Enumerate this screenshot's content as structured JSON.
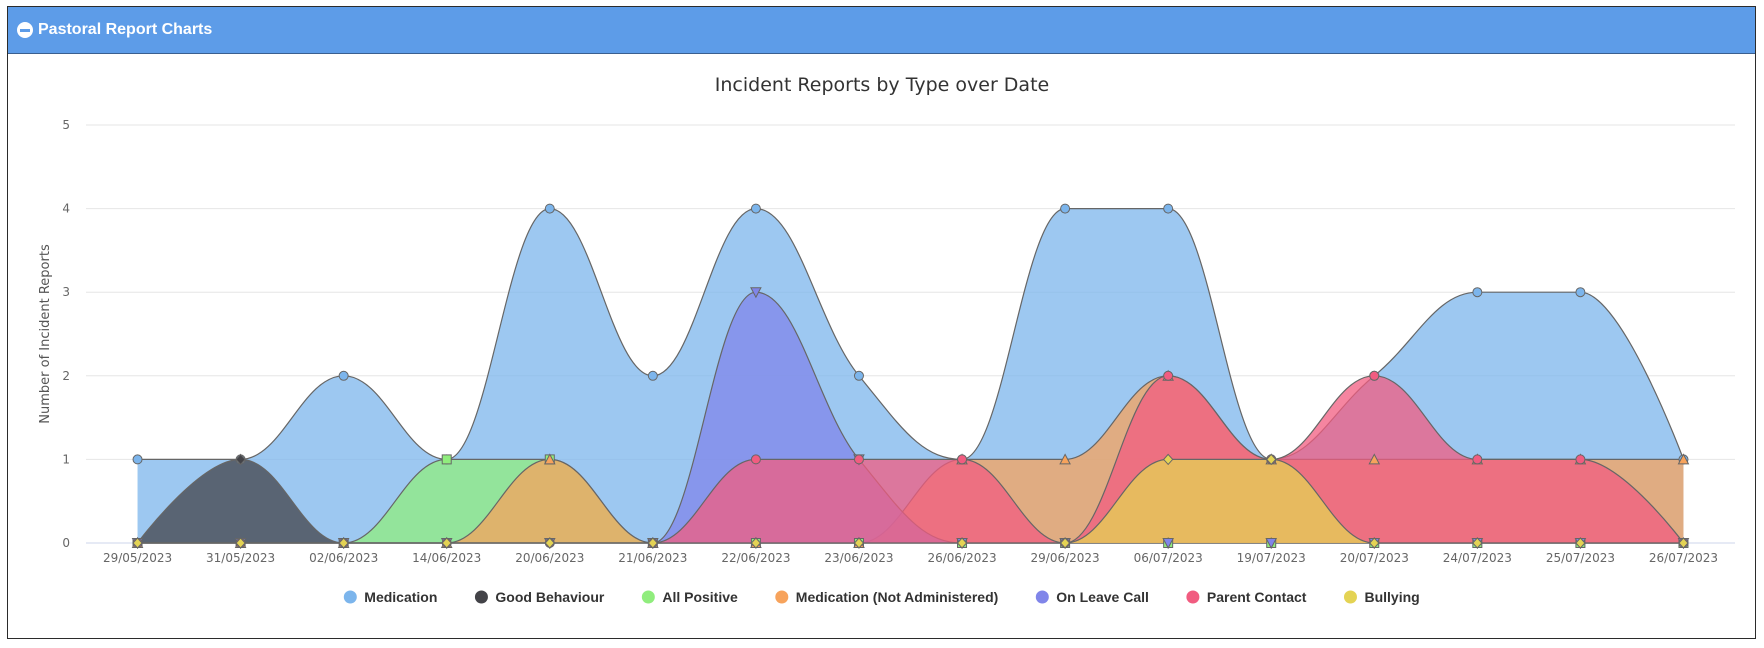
{
  "panel": {
    "title": "Pastoral Report Charts",
    "icon": "collapse-minus-icon"
  },
  "chart_data": {
    "type": "area",
    "subtype": "spline",
    "title": "Incident Reports by Type over Date",
    "xlabel": "",
    "ylabel": "Number of Incident Reports",
    "ylim": [
      0,
      5
    ],
    "yticks": [
      "0",
      "1",
      "2",
      "3",
      "4",
      "5"
    ],
    "grid": true,
    "legend": "bottom-center",
    "categories": [
      "29/05/2023",
      "31/05/2023",
      "02/06/2023",
      "14/06/2023",
      "20/06/2023",
      "21/06/2023",
      "22/06/2023",
      "23/06/2023",
      "26/06/2023",
      "29/06/2023",
      "06/07/2023",
      "19/07/2023",
      "20/07/2023",
      "24/07/2023",
      "25/07/2023",
      "26/07/2023"
    ],
    "series": [
      {
        "name": "Medication",
        "color": "#7cb5ec",
        "marker": "circle",
        "values": [
          1,
          1,
          2,
          1,
          4,
          2,
          4,
          2,
          1,
          4,
          4,
          1,
          2,
          3,
          3,
          1
        ]
      },
      {
        "name": "Good Behaviour",
        "color": "#434348",
        "marker": "diamond",
        "values": [
          0,
          1,
          0,
          0,
          0,
          0,
          0,
          0,
          0,
          0,
          0,
          0,
          0,
          0,
          0,
          0
        ]
      },
      {
        "name": "All Positive",
        "color": "#90ed7d",
        "marker": "square",
        "values": [
          0,
          0,
          0,
          1,
          1,
          0,
          0,
          0,
          0,
          0,
          0,
          0,
          0,
          0,
          0,
          0
        ]
      },
      {
        "name": "Medication (Not Administered)",
        "color": "#f7a35c",
        "marker": "triangle",
        "values": [
          0,
          0,
          0,
          0,
          1,
          0,
          0,
          0,
          1,
          1,
          2,
          1,
          1,
          1,
          1,
          1
        ]
      },
      {
        "name": "On Leave Call",
        "color": "#8085e9",
        "marker": "triangle-down",
        "values": [
          0,
          0,
          0,
          0,
          0,
          0,
          3,
          1,
          0,
          0,
          0,
          0,
          0,
          0,
          0,
          0
        ]
      },
      {
        "name": "Parent Contact",
        "color": "#f15c80",
        "marker": "circle",
        "values": [
          0,
          0,
          0,
          0,
          0,
          0,
          1,
          1,
          1,
          0,
          2,
          1,
          2,
          1,
          1,
          0
        ]
      },
      {
        "name": "Bullying",
        "color": "#e4d354",
        "marker": "diamond",
        "values": [
          0,
          0,
          0,
          0,
          0,
          0,
          0,
          0,
          0,
          0,
          1,
          1,
          0,
          0,
          0,
          0
        ]
      }
    ]
  }
}
